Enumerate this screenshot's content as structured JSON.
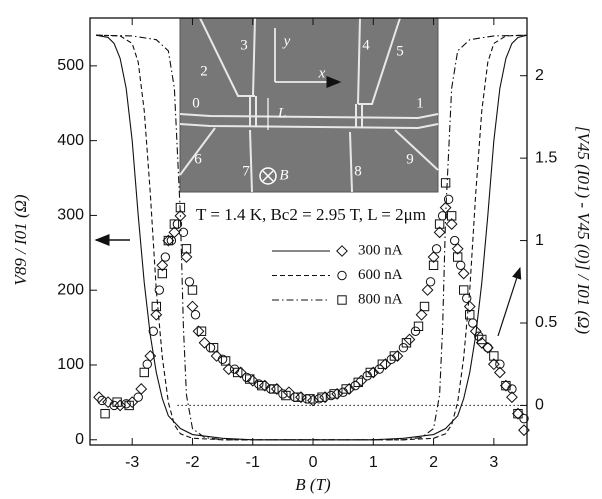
{
  "chart_data": {
    "type": "line_scatter",
    "x_label": "B (T)",
    "y_label": "V89 / I01 (Ω)",
    "y2_label": "[V45 (I01) - V45 (0)] / I01 (Ω)",
    "annotation": "T = 1.4 K, Bc2 = 2.95 T, L = 2μm",
    "inset_labels": [
      "0",
      "1",
      "2",
      "3",
      "4",
      "5",
      "6",
      "7",
      "8",
      "9",
      "x",
      "y",
      "L",
      "B"
    ],
    "xlim": [
      -3.7,
      3.55
    ],
    "xticks": [
      -3,
      -2,
      -1,
      0,
      1,
      2,
      3
    ],
    "ylim": [
      -7,
      564
    ],
    "yticks": [
      0,
      100,
      200,
      300,
      400,
      500
    ],
    "y2lim": [
      -0.24,
      2.35
    ],
    "y2ticks": [
      0,
      0.5,
      1,
      1.5,
      2
    ],
    "reference_line": {
      "axis": "y2",
      "value": 0,
      "xrange": [
        -2.25,
        3.55
      ]
    },
    "color": "#111111",
    "series": [
      {
        "name": "300 nA",
        "line_style": "solid",
        "marker": "diamond",
        "line": {
          "x": [
            -3.6,
            -3.4,
            -3.3,
            -3.2,
            -3.1,
            -3.0,
            -2.9,
            -2.8,
            -2.7,
            -2.6,
            -2.5,
            -2.4,
            -2.2,
            -2.0,
            -1.5,
            -1.0,
            0,
            1.0,
            1.5,
            2.0,
            2.2,
            2.4,
            2.5,
            2.6,
            2.7,
            2.8,
            2.9,
            3.0,
            3.1,
            3.2,
            3.3,
            3.4,
            3.55
          ],
          "values": [
            541,
            538,
            530,
            510,
            470,
            400,
            300,
            210,
            140,
            90,
            55,
            32,
            15,
            7,
            2,
            0,
            0,
            0,
            2,
            7,
            15,
            32,
            55,
            90,
            140,
            210,
            300,
            400,
            470,
            510,
            530,
            538,
            541
          ]
        },
        "points": {
          "axis": "y2",
          "x": [
            -3.55,
            -3.4,
            -3.2,
            -3.0,
            -2.85,
            -2.7,
            -2.6,
            -2.5,
            -2.4,
            -2.3,
            -2.2,
            -2.1,
            -2.0,
            -1.9,
            -1.8,
            -1.6,
            -1.4,
            -1.2,
            -1.0,
            -0.8,
            -0.6,
            -0.4,
            -0.2,
            0,
            0.2,
            0.4,
            0.6,
            0.8,
            1.0,
            1.2,
            1.4,
            1.6,
            1.8,
            1.9,
            2.0,
            2.1,
            2.2,
            2.3,
            2.4,
            2.5,
            2.6,
            2.7,
            2.8,
            2.9,
            3.0,
            3.1,
            3.2,
            3.3,
            3.4,
            3.5
          ],
          "values": [
            0.05,
            0.02,
            0,
            0.02,
            0.1,
            0.3,
            0.55,
            0.85,
            1.0,
            1.05,
            1.15,
            0.9,
            0.6,
            0.45,
            0.38,
            0.3,
            0.22,
            0.2,
            0.15,
            0.12,
            0.1,
            0.08,
            0.05,
            0.03,
            0.05,
            0.07,
            0.1,
            0.15,
            0.2,
            0.25,
            0.3,
            0.4,
            0.55,
            0.7,
            0.9,
            1.05,
            1.2,
            1.1,
            0.95,
            0.8,
            0.6,
            0.45,
            0.38,
            0.35,
            0.25,
            0.2,
            0.12,
            0.05,
            -0.05,
            -0.15
          ]
        }
      },
      {
        "name": "600 nA",
        "line_style": "dashed",
        "marker": "circle",
        "line": {
          "x": [
            -3.6,
            -3.2,
            -3.0,
            -2.9,
            -2.8,
            -2.7,
            -2.6,
            -2.5,
            -2.4,
            -2.3,
            -2.2,
            -2.0,
            -1.5,
            1.5,
            2.0,
            2.2,
            2.3,
            2.4,
            2.5,
            2.6,
            2.7,
            2.8,
            2.9,
            3.0,
            3.2,
            3.55
          ],
          "values": [
            541,
            540,
            530,
            505,
            440,
            330,
            200,
            110,
            50,
            20,
            8,
            2,
            0,
            0,
            2,
            8,
            20,
            50,
            110,
            200,
            330,
            440,
            505,
            530,
            540,
            541
          ]
        },
        "points": {
          "axis": "y2",
          "x": [
            -3.5,
            -3.3,
            -3.1,
            -2.9,
            -2.75,
            -2.65,
            -2.55,
            -2.45,
            -2.35,
            -2.25,
            -2.15,
            -2.05,
            -1.95,
            -1.7,
            -1.5,
            -1.3,
            -1.1,
            -0.9,
            -0.7,
            -0.5,
            -0.3,
            -0.1,
            0.1,
            0.3,
            0.5,
            0.7,
            0.9,
            1.1,
            1.3,
            1.5,
            1.7,
            1.95,
            2.05,
            2.15,
            2.25,
            2.35,
            2.45,
            2.55,
            2.65,
            2.75,
            2.9,
            3.1,
            3.3,
            3.5
          ],
          "values": [
            0.03,
            0,
            0.01,
            0.05,
            0.25,
            0.45,
            0.7,
            0.9,
            1.0,
            1.1,
            1.05,
            0.75,
            0.55,
            0.35,
            0.28,
            0.22,
            0.17,
            0.13,
            0.1,
            0.07,
            0.05,
            0.04,
            0.04,
            0.06,
            0.08,
            0.12,
            0.18,
            0.22,
            0.28,
            0.35,
            0.45,
            0.75,
            0.95,
            1.15,
            1.25,
            1.0,
            0.85,
            0.65,
            0.5,
            0.42,
            0.35,
            0.25,
            0.1,
            -0.08
          ]
        }
      },
      {
        "name": "800 nA",
        "line_style": "dashdot",
        "marker": "square",
        "line": {
          "x": [
            -3.6,
            -3.0,
            -2.6,
            -2.4,
            -2.3,
            -2.2,
            -2.15,
            -2.1,
            -2.0,
            -1.8,
            -1.5,
            1.5,
            1.8,
            2.0,
            2.1,
            2.15,
            2.2,
            2.3,
            2.4,
            2.6,
            3.0,
            3.55
          ],
          "values": [
            541,
            540,
            535,
            520,
            470,
            300,
            150,
            60,
            15,
            3,
            0,
            0,
            3,
            15,
            60,
            150,
            300,
            470,
            520,
            535,
            540,
            541
          ]
        },
        "points": {
          "axis": "y2",
          "x": [
            -3.45,
            -3.25,
            -3.05,
            -2.8,
            -2.6,
            -2.5,
            -2.4,
            -2.3,
            -2.2,
            -2.1,
            -2.0,
            -1.85,
            -1.65,
            -1.45,
            -1.25,
            -1.05,
            -0.85,
            -0.65,
            -0.45,
            -0.25,
            -0.05,
            0.15,
            0.35,
            0.55,
            0.75,
            0.95,
            1.15,
            1.35,
            1.55,
            1.75,
            1.85,
            2.0,
            2.1,
            2.2,
            2.3,
            2.4,
            2.5,
            2.6,
            2.8,
            3.0,
            3.2,
            3.4
          ],
          "values": [
            -0.05,
            0.02,
            0,
            0.2,
            0.6,
            0.8,
            1.0,
            1.1,
            1.2,
            0.95,
            0.7,
            0.45,
            0.35,
            0.27,
            0.2,
            0.16,
            0.12,
            0.1,
            0.06,
            0.05,
            0.04,
            0.05,
            0.07,
            0.1,
            0.14,
            0.2,
            0.25,
            0.3,
            0.38,
            0.48,
            0.6,
            0.85,
            1.1,
            1.35,
            1.15,
            0.9,
            0.7,
            0.55,
            0.4,
            0.3,
            0.12,
            -0.05
          ]
        }
      }
    ]
  }
}
